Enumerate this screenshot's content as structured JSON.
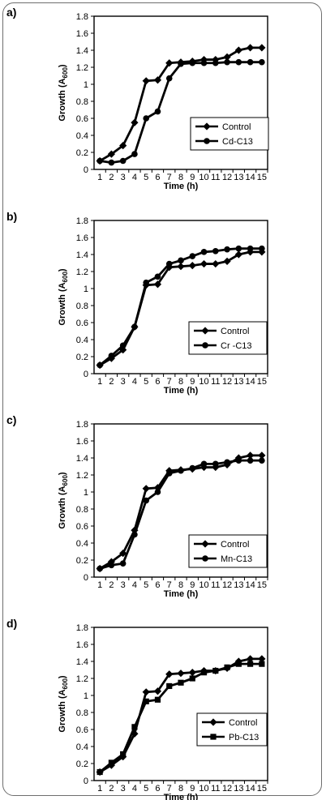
{
  "chart_data": [
    {
      "type": "line",
      "panel_label": "a)",
      "x": [
        1,
        2,
        3,
        4,
        5,
        6,
        7,
        8,
        9,
        10,
        11,
        12,
        13,
        14,
        15
      ],
      "xlabel": "Time (h)",
      "ylabel_main": "Growth (A",
      "ylabel_sub": "600",
      "ylabel_close": ")",
      "ylim": [
        0,
        1.8
      ],
      "yticks": [
        "0",
        "0.2",
        "0.4",
        "0.6",
        "0.8",
        "1",
        "1.2",
        "1.4",
        "1.6",
        "1.8"
      ],
      "xticks": [
        "1",
        "2",
        "3",
        "4",
        "5",
        "6",
        "7",
        "8",
        "9",
        "10",
        "11",
        "12",
        "13",
        "14",
        "15"
      ],
      "grid": false,
      "legend_position": "center-right",
      "series": [
        {
          "name": "Control",
          "marker": "diamond",
          "values": [
            0.1,
            0.18,
            0.28,
            0.55,
            1.04,
            1.05,
            1.25,
            1.26,
            1.27,
            1.29,
            1.29,
            1.32,
            1.4,
            1.43,
            1.43
          ]
        },
        {
          "name": "Cd-C13",
          "marker": "circle",
          "values": [
            0.1,
            0.08,
            0.1,
            0.18,
            0.6,
            0.68,
            1.07,
            1.24,
            1.25,
            1.25,
            1.25,
            1.26,
            1.26,
            1.26,
            1.26
          ]
        }
      ]
    },
    {
      "type": "line",
      "panel_label": "b)",
      "x": [
        1,
        2,
        3,
        4,
        5,
        6,
        7,
        8,
        9,
        10,
        11,
        12,
        13,
        14,
        15
      ],
      "xlabel": "Time (h)",
      "ylabel_main": "Growth (A",
      "ylabel_sub": "600",
      "ylabel_close": ")",
      "ylim": [
        0,
        1.8
      ],
      "yticks": [
        "0",
        "0.2",
        "0.4",
        "0.6",
        "0.8",
        "1",
        "1.2",
        "1.4",
        "1.6",
        "1.8"
      ],
      "xticks": [
        "1",
        "2",
        "3",
        "4",
        "5",
        "6",
        "7",
        "8",
        "9",
        "10",
        "11",
        "12",
        "13",
        "14",
        "15"
      ],
      "grid": false,
      "legend_position": "bottom-right",
      "series": [
        {
          "name": "Control",
          "marker": "diamond",
          "values": [
            0.1,
            0.18,
            0.28,
            0.55,
            1.04,
            1.05,
            1.25,
            1.26,
            1.27,
            1.29,
            1.29,
            1.32,
            1.4,
            1.43,
            1.43
          ]
        },
        {
          "name": "Cr -C13",
          "marker": "circle",
          "values": [
            0.1,
            0.21,
            0.33,
            0.55,
            1.07,
            1.14,
            1.29,
            1.33,
            1.38,
            1.43,
            1.44,
            1.46,
            1.47,
            1.47,
            1.47
          ]
        }
      ]
    },
    {
      "type": "line",
      "panel_label": "c)",
      "x": [
        1,
        2,
        3,
        4,
        5,
        6,
        7,
        8,
        9,
        10,
        11,
        12,
        13,
        14,
        15
      ],
      "xlabel": "Time (h)",
      "ylabel_main": "Growth (A",
      "ylabel_sub": "600",
      "ylabel_close": ")",
      "ylim": [
        0,
        1.8
      ],
      "yticks": [
        "0",
        "0.2",
        "0.4",
        "0.6",
        "0.8",
        "1",
        "1.2",
        "1.4",
        "1.6",
        "1.8"
      ],
      "xticks": [
        "1",
        "2",
        "3",
        "4",
        "5",
        "6",
        "7",
        "8",
        "9",
        "10",
        "11",
        "12",
        "13",
        "14",
        "15"
      ],
      "grid": false,
      "legend_position": "bottom-right",
      "series": [
        {
          "name": "Control",
          "marker": "diamond",
          "values": [
            0.1,
            0.18,
            0.28,
            0.55,
            1.04,
            1.05,
            1.25,
            1.26,
            1.27,
            1.29,
            1.29,
            1.32,
            1.4,
            1.43,
            1.43
          ]
        },
        {
          "name": "Mn-C13",
          "marker": "circle",
          "values": [
            0.1,
            0.14,
            0.16,
            0.5,
            0.9,
            1.0,
            1.22,
            1.25,
            1.28,
            1.33,
            1.33,
            1.35,
            1.37,
            1.37,
            1.37
          ]
        }
      ]
    },
    {
      "type": "line",
      "panel_label": "d)",
      "x": [
        1,
        2,
        3,
        4,
        5,
        6,
        7,
        8,
        9,
        10,
        11,
        12,
        13,
        14,
        15
      ],
      "xlabel": "Time (h)",
      "ylabel_main": "Growth (A",
      "ylabel_sub": "600",
      "ylabel_close": ")",
      "ylim": [
        0,
        1.8
      ],
      "yticks": [
        "0",
        "0.2",
        "0.4",
        "0.6",
        "0.8",
        "1",
        "1.2",
        "1.4",
        "1.6",
        "1.8"
      ],
      "xticks": [
        "1",
        "2",
        "3",
        "4",
        "5",
        "6",
        "7",
        "8",
        "9",
        "10",
        "11",
        "12",
        "13",
        "14",
        "15"
      ],
      "grid": false,
      "legend_position": "bottom-right",
      "series": [
        {
          "name": "Control",
          "marker": "diamond",
          "values": [
            0.1,
            0.18,
            0.28,
            0.55,
            1.04,
            1.05,
            1.25,
            1.26,
            1.27,
            1.29,
            1.29,
            1.32,
            1.4,
            1.43,
            1.43
          ]
        },
        {
          "name": "Pb-C13",
          "marker": "square",
          "values": [
            0.1,
            0.21,
            0.31,
            0.63,
            0.93,
            0.95,
            1.11,
            1.15,
            1.2,
            1.27,
            1.29,
            1.33,
            1.37,
            1.37,
            1.37
          ]
        }
      ]
    }
  ]
}
